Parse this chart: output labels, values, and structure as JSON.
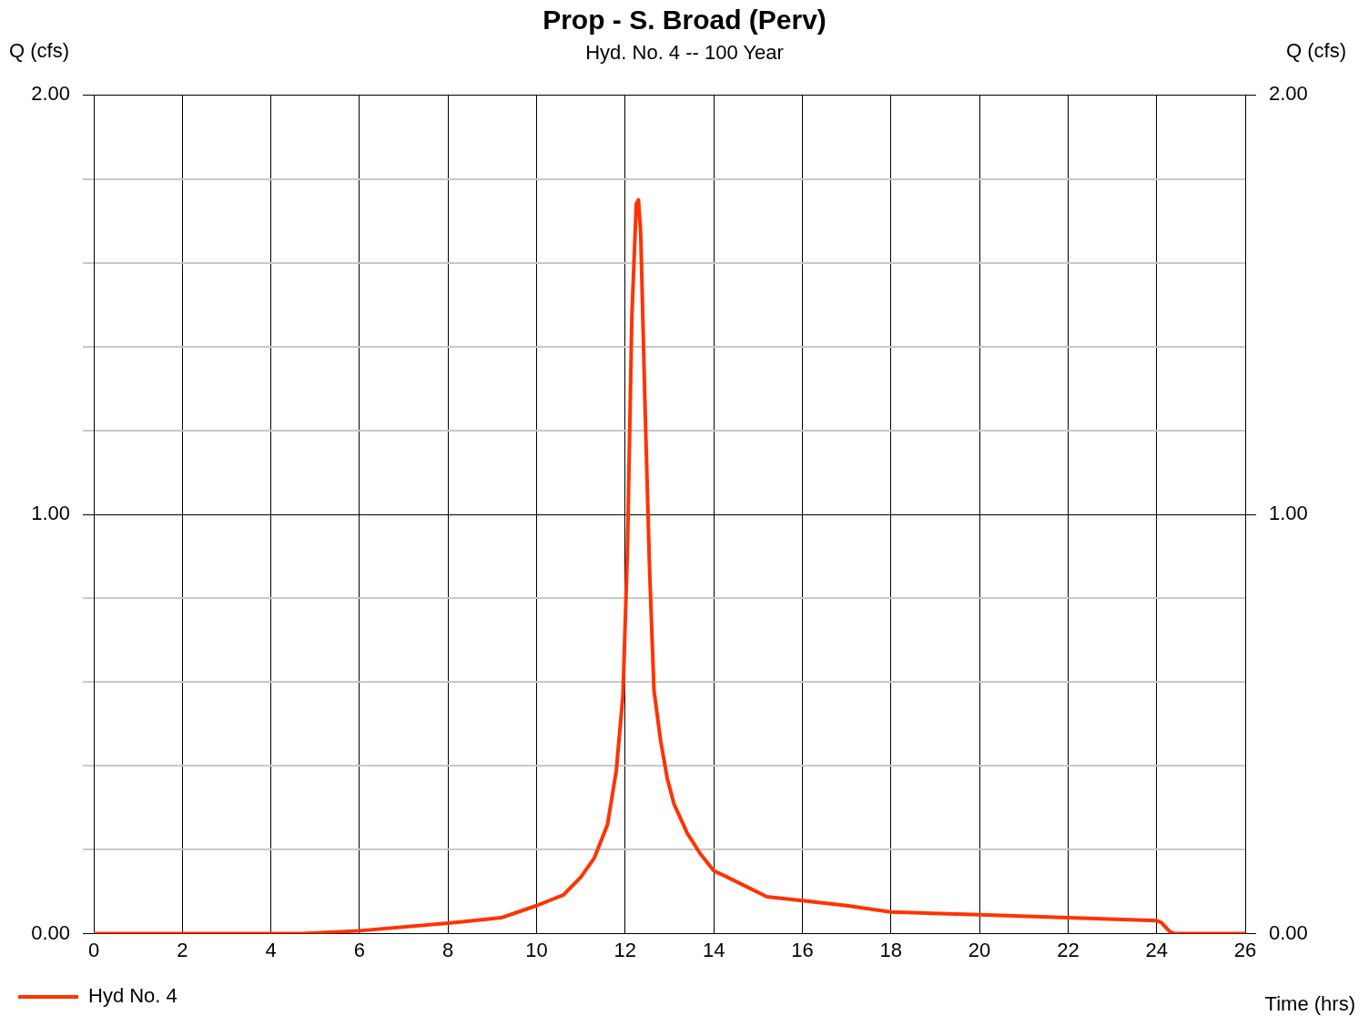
{
  "chart_data": {
    "type": "line",
    "title": "Prop - S. Broad (Perv)",
    "subtitle": "Hyd. No. 4 -- 100 Year",
    "xlabel": "Time (hrs)",
    "ylabel": "Q (cfs)",
    "y2label": "Q (cfs)",
    "x": [
      0,
      4.7,
      6,
      8,
      9.2,
      10,
      10.6,
      11,
      11.3,
      11.6,
      11.8,
      11.95,
      12.05,
      12.15,
      12.25,
      12.3,
      12.35,
      12.45,
      12.55,
      12.65,
      12.8,
      12.95,
      13.1,
      13.4,
      13.7,
      14,
      14.3,
      15.2,
      16,
      17,
      18,
      20,
      22,
      24,
      24.1,
      24.3,
      24.4,
      26
    ],
    "series": [
      {
        "name": "Hyd No. 4",
        "color": "#ff3300",
        "values": [
          0,
          0,
          0.007,
          0.025,
          0.038,
          0.067,
          0.092,
          0.135,
          0.18,
          0.26,
          0.39,
          0.57,
          0.91,
          1.47,
          1.74,
          1.75,
          1.67,
          1.25,
          0.87,
          0.58,
          0.46,
          0.37,
          0.31,
          0.24,
          0.19,
          0.15,
          0.135,
          0.088,
          0.079,
          0.067,
          0.052,
          0.045,
          0.038,
          0.031,
          0.027,
          0.005,
          0,
          0
        ]
      }
    ],
    "xlim": [
      0,
      26
    ],
    "xticks": [
      0,
      2,
      4,
      6,
      8,
      10,
      12,
      14,
      16,
      18,
      20,
      22,
      24,
      26
    ],
    "ylim": [
      0,
      2
    ],
    "yticks": [
      {
        "value": 0,
        "label": "0.00"
      },
      {
        "value": 0.2,
        "label": null
      },
      {
        "value": 0.4,
        "label": null
      },
      {
        "value": 0.6,
        "label": null
      },
      {
        "value": 0.8,
        "label": null
      },
      {
        "value": 1,
        "label": "1.00"
      },
      {
        "value": 1.2,
        "label": null
      },
      {
        "value": 1.4,
        "label": null
      },
      {
        "value": 1.6,
        "label": null
      },
      {
        "value": 1.8,
        "label": null
      },
      {
        "value": 2,
        "label": "2.00"
      }
    ],
    "y2lim": [
      0,
      2
    ],
    "y2ticks": [
      {
        "value": 0,
        "label": "0.00"
      },
      {
        "value": 1,
        "label": "1.00"
      },
      {
        "value": 2,
        "label": "2.00"
      }
    ],
    "grid": true,
    "legend": "bottom left",
    "marker": "none",
    "line_style": "solid"
  }
}
